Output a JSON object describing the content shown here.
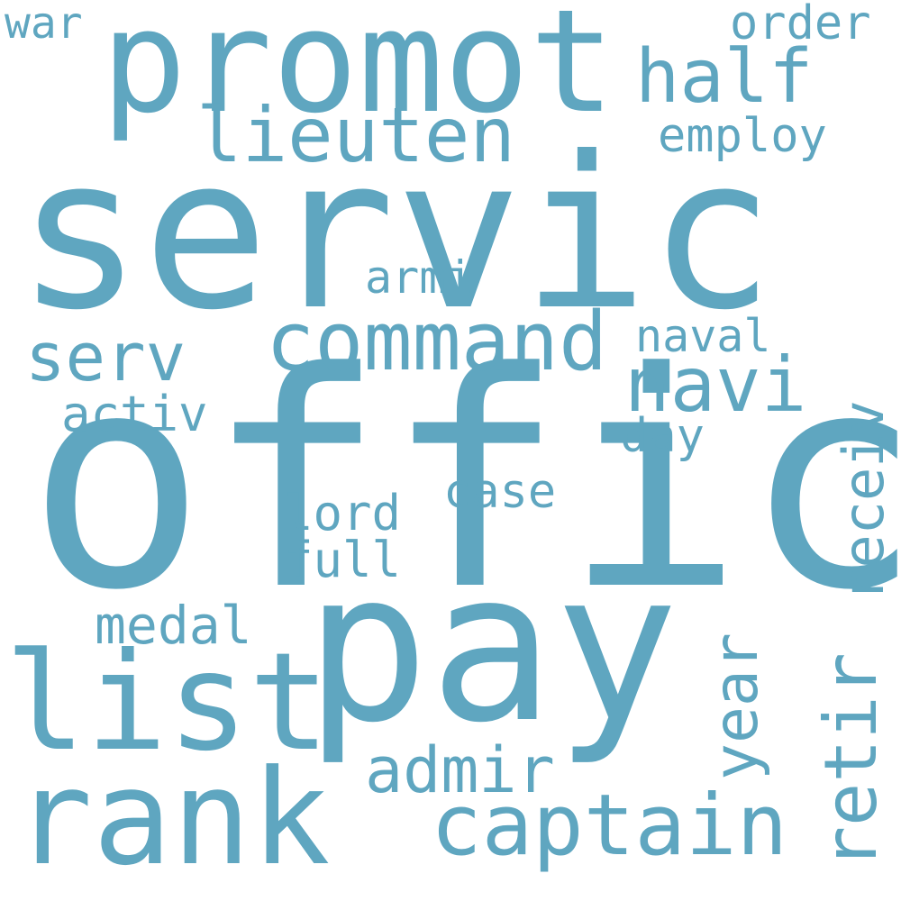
{
  "cloud": {
    "color": "#5fa6c0",
    "background": "#ffffff",
    "words": {
      "offic": "offic",
      "servic": "servic",
      "pay": "pay",
      "promot": "promot",
      "list": "list",
      "rank": "rank",
      "command": "command",
      "captain": "captain",
      "navi": "navi",
      "retir": "retir",
      "receiv": "receiv",
      "lieuten": "lieuten",
      "half": "half",
      "serv": "serv",
      "admir": "admir",
      "year": "year",
      "order": "order",
      "employ": "employ",
      "armi": "armi",
      "naval": "naval",
      "activ": "activ",
      "day": "day",
      "case": "case",
      "lord": "lord",
      "full": "full",
      "medal": "medal",
      "war": "war"
    }
  }
}
